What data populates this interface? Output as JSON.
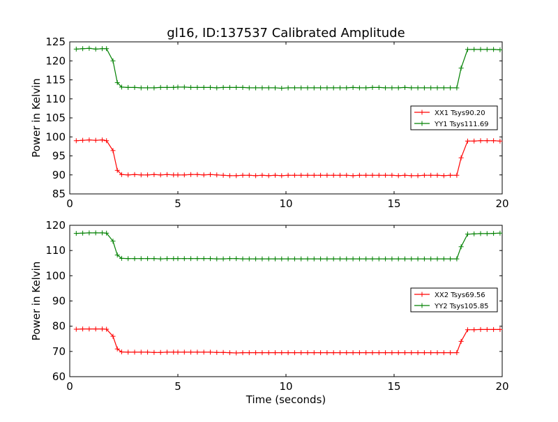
{
  "chart_data": [
    {
      "type": "line",
      "title": "gl16, ID:137537 Calibrated Amplitude",
      "xlabel": "",
      "ylabel": "Power in Kelvin",
      "xlim": [
        0,
        20
      ],
      "ylim": [
        85,
        125
      ],
      "xticks": [
        0,
        5,
        10,
        15,
        20
      ],
      "yticks": [
        85,
        90,
        95,
        100,
        105,
        110,
        115,
        120,
        125
      ],
      "grid": false,
      "legend_position": "center-right",
      "x": [
        0.3,
        0.6,
        0.9,
        1.2,
        1.5,
        1.7,
        2.0,
        2.2,
        2.4,
        2.7,
        3.0,
        3.3,
        3.6,
        3.9,
        4.2,
        4.5,
        4.8,
        5.0,
        5.3,
        5.6,
        5.9,
        6.2,
        6.5,
        6.8,
        7.1,
        7.4,
        7.7,
        8.0,
        8.3,
        8.6,
        8.9,
        9.2,
        9.5,
        9.8,
        10.1,
        10.4,
        10.7,
        11.0,
        11.3,
        11.6,
        11.9,
        12.2,
        12.5,
        12.8,
        13.1,
        13.4,
        13.7,
        14.0,
        14.3,
        14.6,
        14.9,
        15.2,
        15.5,
        15.8,
        16.1,
        16.4,
        16.7,
        17.0,
        17.3,
        17.6,
        17.9,
        18.1,
        18.4,
        18.7,
        19.0,
        19.3,
        19.6,
        19.9
      ],
      "series": [
        {
          "name": "XX1 Tsys90.20",
          "color": "#ff0000",
          "values": [
            99.0,
            99.1,
            99.2,
            99.1,
            99.2,
            99.0,
            96.4,
            91.2,
            90.1,
            90.0,
            90.1,
            90.0,
            90.0,
            90.1,
            90.0,
            90.1,
            90.0,
            90.0,
            90.0,
            90.1,
            90.1,
            90.0,
            90.1,
            90.0,
            89.9,
            89.8,
            89.8,
            89.9,
            89.9,
            89.8,
            89.9,
            89.8,
            89.9,
            89.8,
            89.9,
            89.9,
            89.9,
            89.9,
            89.9,
            89.9,
            89.9,
            89.9,
            89.9,
            89.9,
            89.8,
            89.9,
            89.9,
            89.9,
            89.9,
            89.9,
            89.9,
            89.8,
            89.9,
            89.8,
            89.8,
            89.9,
            89.9,
            89.9,
            89.8,
            89.9,
            89.9,
            94.5,
            98.9,
            98.9,
            99.0,
            99.0,
            99.0,
            98.9
          ]
        },
        {
          "name": "YY1 Tsys111.69",
          "color": "#008000",
          "values": [
            123.1,
            123.2,
            123.3,
            123.1,
            123.2,
            123.2,
            120.0,
            114.3,
            113.1,
            113.0,
            113.0,
            112.9,
            112.9,
            112.9,
            113.0,
            113.0,
            113.0,
            113.1,
            113.1,
            113.0,
            113.0,
            113.0,
            113.0,
            112.9,
            113.0,
            113.0,
            113.0,
            113.0,
            112.9,
            112.9,
            112.9,
            112.9,
            112.9,
            112.8,
            112.9,
            112.9,
            112.9,
            112.9,
            112.9,
            112.9,
            112.9,
            112.9,
            112.9,
            112.9,
            113.0,
            112.9,
            112.9,
            113.0,
            113.0,
            112.9,
            112.9,
            112.9,
            113.0,
            112.9,
            112.9,
            112.9,
            112.9,
            112.9,
            112.9,
            112.9,
            112.9,
            118.1,
            123.0,
            123.0,
            123.0,
            123.0,
            123.0,
            122.9
          ]
        }
      ]
    },
    {
      "type": "line",
      "title": "",
      "xlabel": "Time (seconds)",
      "ylabel": "Power in Kelvin",
      "xlim": [
        0,
        20
      ],
      "ylim": [
        60,
        120
      ],
      "xticks": [
        0,
        5,
        10,
        15,
        20
      ],
      "yticks": [
        60,
        70,
        80,
        90,
        100,
        110,
        120
      ],
      "grid": false,
      "legend_position": "center-right",
      "x": [
        0.3,
        0.6,
        0.9,
        1.2,
        1.5,
        1.7,
        2.0,
        2.2,
        2.4,
        2.7,
        3.0,
        3.3,
        3.6,
        3.9,
        4.2,
        4.5,
        4.8,
        5.0,
        5.3,
        5.6,
        5.9,
        6.2,
        6.5,
        6.8,
        7.1,
        7.4,
        7.7,
        8.0,
        8.3,
        8.6,
        8.9,
        9.2,
        9.5,
        9.8,
        10.1,
        10.4,
        10.7,
        11.0,
        11.3,
        11.6,
        11.9,
        12.2,
        12.5,
        12.8,
        13.1,
        13.4,
        13.7,
        14.0,
        14.3,
        14.6,
        14.9,
        15.2,
        15.5,
        15.8,
        16.1,
        16.4,
        16.7,
        17.0,
        17.3,
        17.6,
        17.9,
        18.1,
        18.4,
        18.7,
        19.0,
        19.3,
        19.6,
        19.9
      ],
      "series": [
        {
          "name": "XX2 Tsys69.56",
          "color": "#ff0000",
          "values": [
            78.8,
            78.9,
            78.9,
            78.9,
            78.9,
            78.8,
            76.0,
            71.0,
            69.8,
            69.7,
            69.7,
            69.7,
            69.7,
            69.6,
            69.6,
            69.7,
            69.7,
            69.7,
            69.7,
            69.7,
            69.7,
            69.7,
            69.7,
            69.6,
            69.6,
            69.5,
            69.4,
            69.5,
            69.5,
            69.5,
            69.5,
            69.5,
            69.5,
            69.5,
            69.5,
            69.5,
            69.5,
            69.5,
            69.5,
            69.5,
            69.5,
            69.5,
            69.5,
            69.5,
            69.5,
            69.5,
            69.5,
            69.5,
            69.5,
            69.5,
            69.5,
            69.5,
            69.5,
            69.5,
            69.5,
            69.5,
            69.5,
            69.5,
            69.5,
            69.5,
            69.5,
            74.0,
            78.6,
            78.6,
            78.7,
            78.7,
            78.7,
            78.7
          ]
        },
        {
          "name": "YY2 Tsys105.85",
          "color": "#008000",
          "values": [
            116.8,
            116.9,
            117.0,
            117.0,
            117.0,
            116.9,
            113.7,
            108.2,
            106.9,
            106.8,
            106.8,
            106.8,
            106.8,
            106.8,
            106.7,
            106.8,
            106.8,
            106.8,
            106.8,
            106.8,
            106.8,
            106.8,
            106.8,
            106.7,
            106.7,
            106.8,
            106.8,
            106.7,
            106.7,
            106.7,
            106.7,
            106.7,
            106.7,
            106.7,
            106.7,
            106.7,
            106.7,
            106.7,
            106.7,
            106.7,
            106.7,
            106.7,
            106.7,
            106.7,
            106.7,
            106.7,
            106.7,
            106.7,
            106.7,
            106.7,
            106.7,
            106.7,
            106.7,
            106.7,
            106.7,
            106.7,
            106.7,
            106.7,
            106.7,
            106.7,
            106.7,
            111.5,
            116.5,
            116.6,
            116.7,
            116.7,
            116.8,
            116.9
          ]
        }
      ]
    }
  ]
}
